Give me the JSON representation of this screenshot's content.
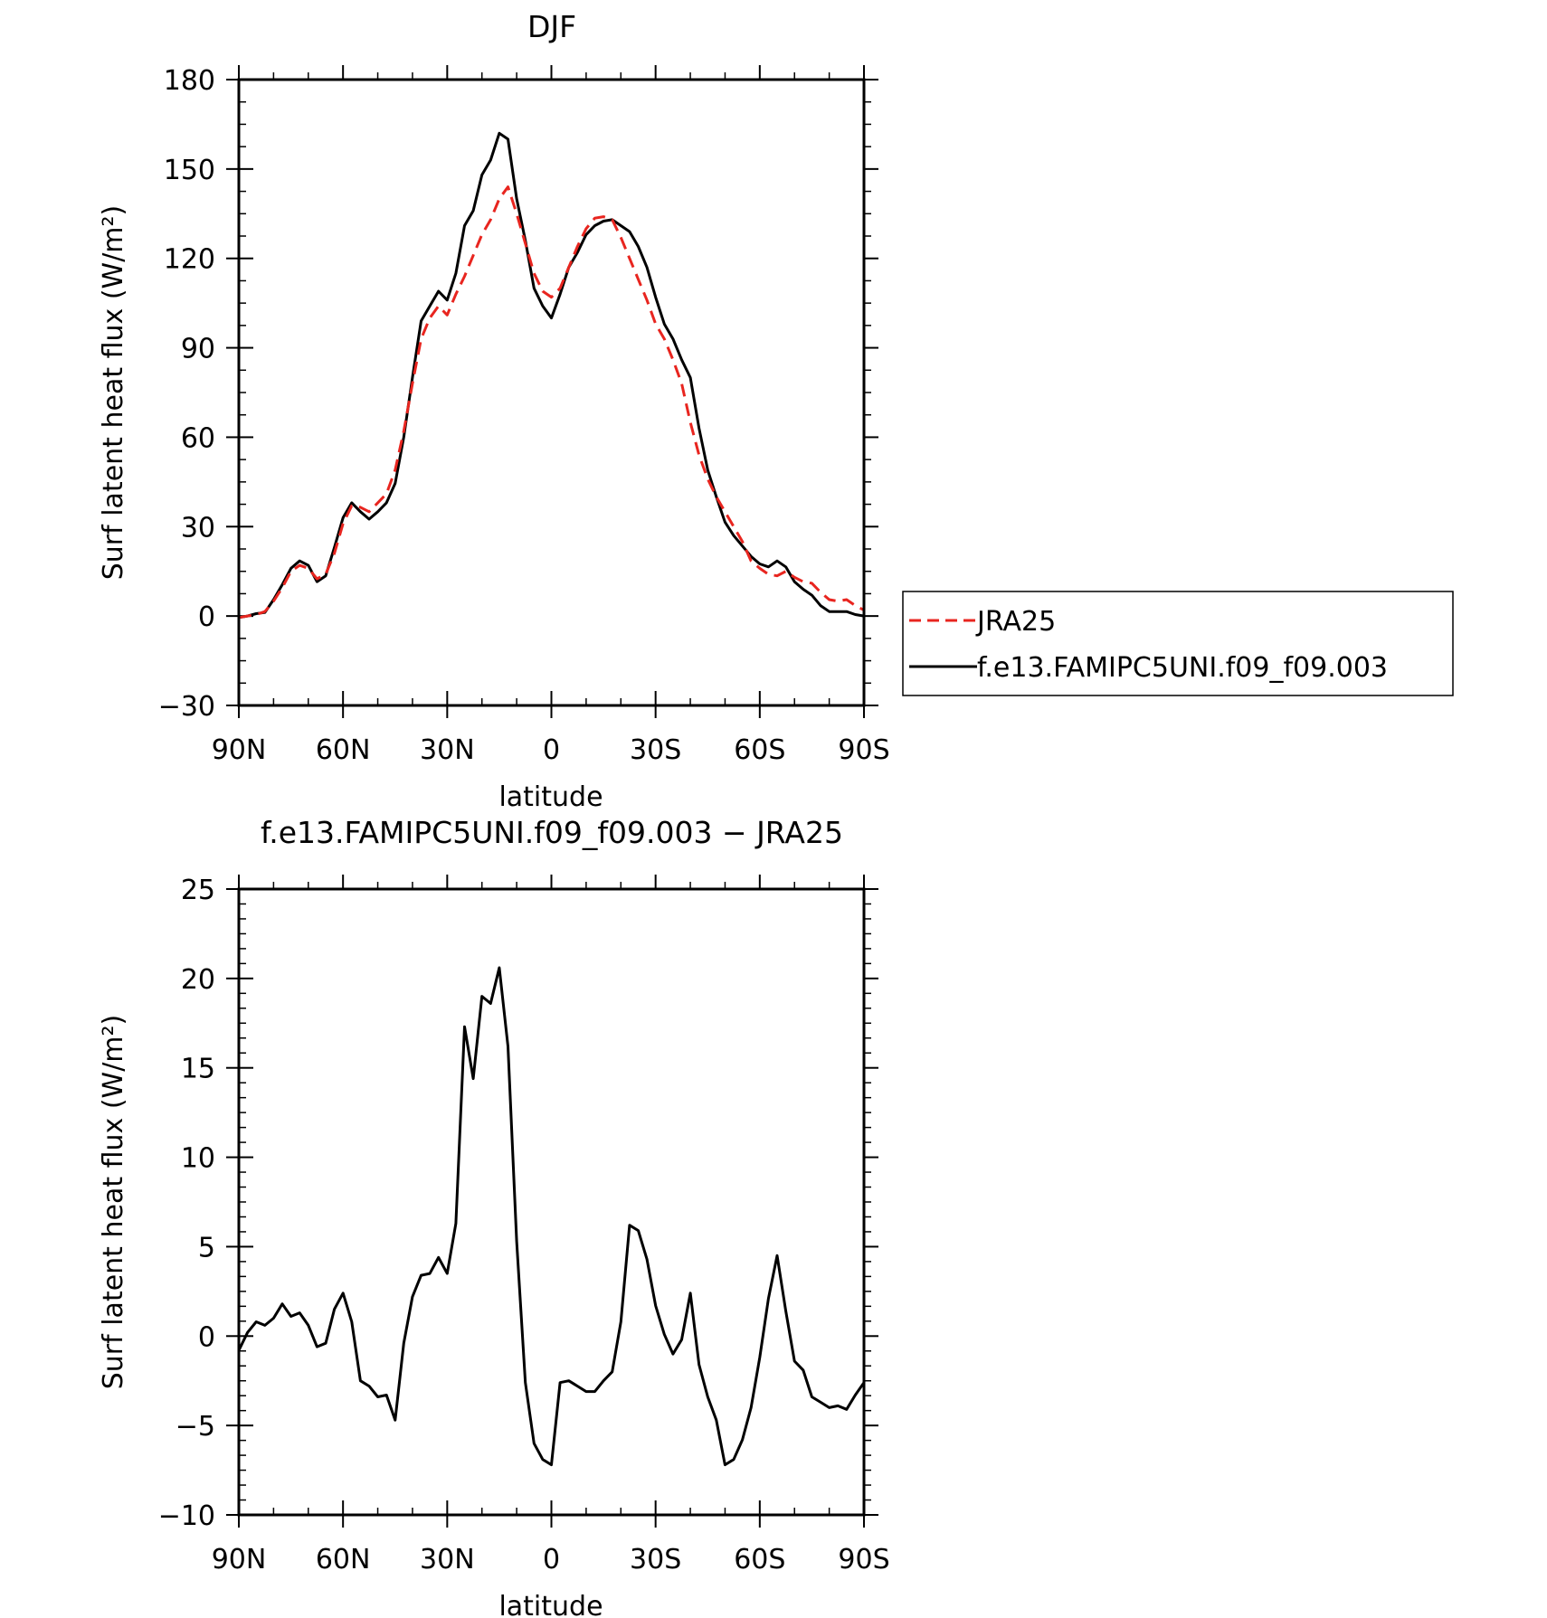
{
  "chart_data": [
    {
      "type": "line",
      "title": "DJF",
      "xlabel": "latitude",
      "ylabel": "Surf latent heat flux (W/m²)",
      "xlim": [
        90,
        -90
      ],
      "ylim": [
        -30,
        180
      ],
      "xtick_values": [
        90,
        60,
        30,
        0,
        -30,
        -60,
        -90
      ],
      "xtick_labels": [
        "90N",
        "60N",
        "30N",
        "0",
        "30S",
        "60S",
        "90S"
      ],
      "yticks": [
        -30,
        0,
        30,
        60,
        90,
        120,
        150,
        180
      ],
      "x": [
        90,
        87.5,
        85,
        82.5,
        80,
        77.5,
        75,
        72.5,
        70,
        67.5,
        65,
        62.5,
        60,
        57.5,
        55,
        52.5,
        50,
        47.5,
        45,
        42.5,
        40,
        37.5,
        35,
        32.5,
        30,
        27.5,
        25,
        22.5,
        20,
        17.5,
        15,
        12.5,
        10,
        7.5,
        5,
        2.5,
        0,
        -2.5,
        -5,
        -7.5,
        -10,
        -12.5,
        -15,
        -17.5,
        -20,
        -22.5,
        -25,
        -27.5,
        -30,
        -32.5,
        -35,
        -37.5,
        -40,
        -42.5,
        -45,
        -47.5,
        -50,
        -52.5,
        -55,
        -57.5,
        -60,
        -62.5,
        -65,
        -67.5,
        -70,
        -72.5,
        -75,
        -77.5,
        -80,
        -82.5,
        -85,
        -87.5,
        -90
      ],
      "series": [
        {
          "name": "JRA25",
          "color": "#e8251f",
          "style": "dashed",
          "values": [
            -0.5,
            0,
            0.5,
            1.5,
            5,
            9.5,
            15,
            17,
            16,
            12.5,
            14,
            21,
            31,
            37,
            36.5,
            35,
            38,
            41,
            49,
            62,
            78,
            93,
            100,
            104,
            101,
            108,
            114,
            121,
            128,
            133,
            140,
            144,
            135,
            125,
            115,
            109,
            107,
            110,
            117,
            124,
            130,
            133.5,
            134,
            133,
            127,
            120,
            113,
            106,
            98,
            93,
            86,
            78,
            65,
            54,
            46,
            40,
            35,
            30,
            25,
            18.5,
            16,
            14,
            13.5,
            15,
            13,
            11.5,
            11,
            8,
            5.5,
            5,
            5.5,
            3.5,
            2
          ]
        },
        {
          "name": "f.e13.FAMIPC5UNI.f09_f09.003",
          "color": "#000000",
          "style": "solid",
          "values": [
            -0.5,
            0,
            0.8,
            1.2,
            5.5,
            10.5,
            16,
            18.5,
            17,
            11.5,
            13.5,
            23,
            33,
            38,
            35,
            32.5,
            35,
            38,
            44.5,
            60,
            80,
            99,
            104,
            109,
            106,
            115,
            131,
            136,
            148,
            153,
            162,
            160,
            140,
            126,
            110,
            104,
            100,
            108,
            117,
            122,
            128,
            131,
            132.5,
            133,
            131,
            129,
            124,
            117,
            107,
            98,
            93,
            86,
            80,
            63,
            49,
            40,
            31.5,
            27,
            23.5,
            20,
            17.5,
            16.5,
            18.5,
            16.5,
            11.5,
            9,
            7,
            3.5,
            1.5,
            1.5,
            1.5,
            0.5,
            0
          ]
        }
      ],
      "legend": {
        "placement": "right",
        "entries": [
          "JRA25",
          "f.e13.FAMIPC5UNI.f09_f09.003"
        ]
      }
    },
    {
      "type": "line",
      "title": "f.e13.FAMIPC5UNI.f09_f09.003 − JRA25",
      "xlabel": "latitude",
      "ylabel": "Surf latent heat flux (W/m²)",
      "xlim": [
        90,
        -90
      ],
      "ylim": [
        -10,
        25
      ],
      "xtick_values": [
        90,
        60,
        30,
        0,
        -30,
        -60,
        -90
      ],
      "xtick_labels": [
        "90N",
        "60N",
        "30N",
        "0",
        "30S",
        "60S",
        "90S"
      ],
      "yticks": [
        -10,
        -5,
        0,
        5,
        10,
        15,
        20,
        25
      ],
      "x": [
        90,
        87.5,
        85,
        82.5,
        80,
        77.5,
        75,
        72.5,
        70,
        67.5,
        65,
        62.5,
        60,
        57.5,
        55,
        52.5,
        50,
        47.5,
        45,
        42.5,
        40,
        37.5,
        35,
        32.5,
        30,
        27.5,
        25,
        22.5,
        20,
        17.5,
        15,
        12.5,
        10,
        7.5,
        5,
        2.5,
        0,
        -2.5,
        -5,
        -7.5,
        -10,
        -12.5,
        -15,
        -17.5,
        -20,
        -22.5,
        -25,
        -27.5,
        -30,
        -32.5,
        -35,
        -37.5,
        -40,
        -42.5,
        -45,
        -47.5,
        -50,
        -52.5,
        -55,
        -57.5,
        -60,
        -62.5,
        -65,
        -67.5,
        -70,
        -72.5,
        -75,
        -77.5,
        -80,
        -82.5,
        -85,
        -87.5,
        -90
      ],
      "series": [
        {
          "color": "#000000",
          "style": "solid",
          "values": [
            -0.8,
            0.2,
            0.8,
            0.6,
            1.0,
            1.8,
            1.1,
            1.3,
            0.6,
            -0.6,
            -0.4,
            1.5,
            2.4,
            0.8,
            -2.5,
            -2.8,
            -3.4,
            -3.3,
            -4.7,
            -0.4,
            2.2,
            3.4,
            3.5,
            4.4,
            3.5,
            6.3,
            17.3,
            14.4,
            19.0,
            18.6,
            20.6,
            16.2,
            5.3,
            -2.6,
            -6.0,
            -6.9,
            -7.2,
            -2.6,
            -2.5,
            -2.8,
            -3.1,
            -3.1,
            -2.5,
            -2.0,
            0.8,
            6.2,
            5.9,
            4.3,
            1.7,
            0.1,
            -1.0,
            -0.2,
            2.4,
            -1.6,
            -3.4,
            -4.7,
            -7.2,
            -6.9,
            -5.8,
            -4.0,
            -1.2,
            2.1,
            4.5,
            1.4,
            -1.4,
            -1.9,
            -3.4,
            -3.7,
            -4.0,
            -3.9,
            -4.1,
            -3.3,
            -2.6
          ]
        }
      ]
    }
  ]
}
